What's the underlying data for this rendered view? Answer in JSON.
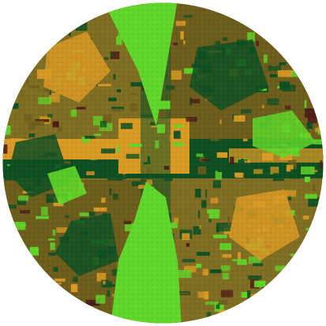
{
  "image": {
    "background": "#ffffff",
    "shape": "circle",
    "palette": {
      "olive": "#7f6d22",
      "olive_dark": "#6d5d1c",
      "green_dark": "#0e4f22",
      "green_bright": "#5fd629",
      "orange": "#d99a24",
      "maroon": "#4b1a19"
    }
  }
}
